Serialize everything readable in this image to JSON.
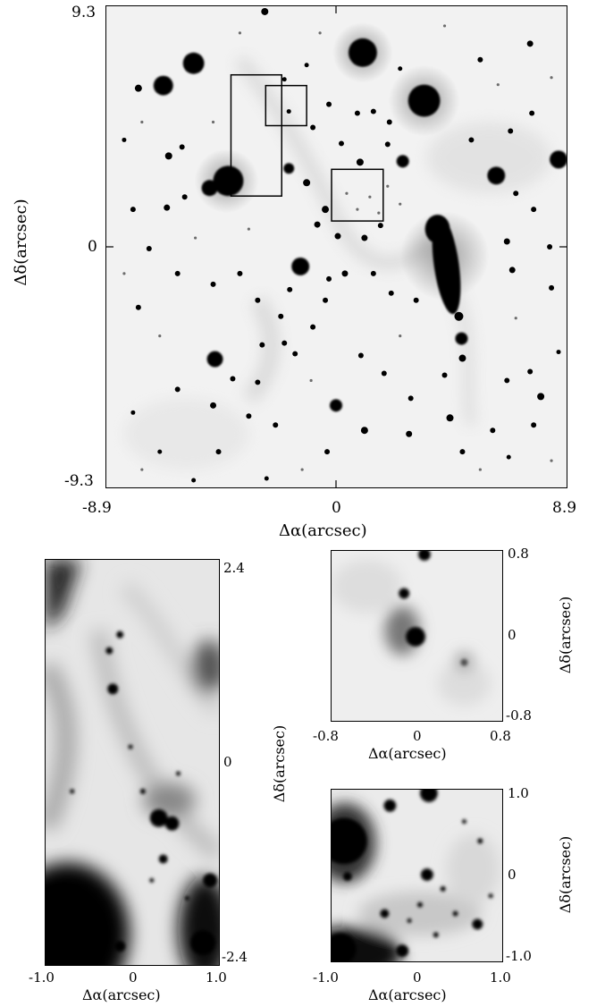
{
  "main": {
    "x_ticks": [
      "-8.9",
      "0",
      "8.9"
    ],
    "y_ticks": [
      "9.3",
      "0",
      "-9.3"
    ],
    "x_label": "Δα(arcsec)",
    "y_label": "Δδ(arcsec)"
  },
  "left_zoom": {
    "x_ticks": [
      "-1.0",
      "0",
      "1.0"
    ],
    "y_ticks": [
      "2.4",
      "0",
      "-2.4"
    ],
    "x_label": "Δα(arcsec)",
    "y_label": "Δδ(arcsec)"
  },
  "top_right_zoom": {
    "x_ticks": [
      "-0.8",
      "0",
      "0.8"
    ],
    "y_ticks": [
      "0.8",
      "0",
      "-0.8"
    ],
    "x_label": "Δα(arcsec)",
    "y_label": "Δδ(arcsec)"
  },
  "bottom_right_zoom": {
    "x_ticks": [
      "-1.0",
      "0",
      "1.0"
    ],
    "y_ticks": [
      "1.0",
      "0",
      "-1.0"
    ],
    "x_label": "Δα(arcsec)",
    "y_label": "Δδ(arcsec)"
  }
}
